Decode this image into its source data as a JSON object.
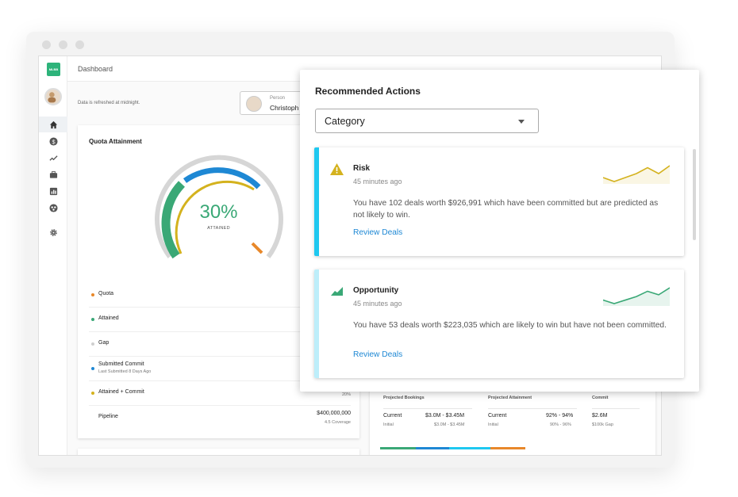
{
  "breadcrumb": "Dashboard",
  "refresh_note": "Data is refreshed at midnight.",
  "logo_text": "MLBB",
  "person": {
    "label": "Person",
    "name": "Christoph"
  },
  "quota": {
    "title": "Quota Attainment",
    "percent": "30%",
    "percent_label": "ATTAINED",
    "legend": [
      {
        "label": "Quota",
        "color": "#e8882a"
      },
      {
        "label": "Attained",
        "color": "#3aa876"
      },
      {
        "label": "Gap",
        "color": "#cfcfcf"
      },
      {
        "label": "Submitted Commit",
        "sub": "Last Submitted 8 Days Ago",
        "color": "#1e88d4"
      },
      {
        "label": "Attained + Commit",
        "color": "#d4b21e",
        "value2": "20%"
      },
      {
        "label": "Pipeline",
        "value": "$400,000,000",
        "value2": "4.5 Coverage"
      }
    ]
  },
  "projections": {
    "columns": [
      {
        "header": "Projected Bookings",
        "row_label": "Current",
        "row_value": "$3.0M - $3.45M",
        "sub_label": "Initial",
        "sub_value": "$3.0M - $3.45M"
      },
      {
        "header": "Projected Attainment",
        "row_label": "Current",
        "row_value": "92% - 94%",
        "sub_label": "Initial",
        "sub_value": "90% - 96%"
      },
      {
        "header": "Commit",
        "row_label": "",
        "row_value": "$2.6M",
        "sub_label": "",
        "sub_value": "$100k Gap"
      }
    ]
  },
  "panel": {
    "title": "Recommended Actions",
    "select_value": "Category",
    "actions": [
      {
        "type": "Risk",
        "icon": "warning-icon",
        "time": "45 minutes ago",
        "description": "You have 102 deals worth $926,991 which have been committed but are predicted as not likely to win.",
        "link": "Review Deals",
        "accent": "#1ec8f0",
        "spark_color": "#d4b21e",
        "spark": [
          4,
          2,
          4,
          6,
          9,
          6,
          10
        ]
      },
      {
        "type": "Opportunity",
        "icon": "trend-up-icon",
        "time": "45 minutes ago",
        "description": "You have 53 deals worth $223,035 which are likely to win but have not been committed.",
        "link": "Review Deals",
        "accent": "#bdeefa",
        "spark_color": "#3aa876",
        "spark": [
          3,
          1,
          3,
          5,
          8,
          6,
          10
        ]
      }
    ]
  },
  "colors": {
    "green": "#3aa876",
    "blue": "#1e88d4",
    "yellow": "#d4b21e",
    "orange": "#e8882a",
    "gray": "#cfcfcf"
  }
}
